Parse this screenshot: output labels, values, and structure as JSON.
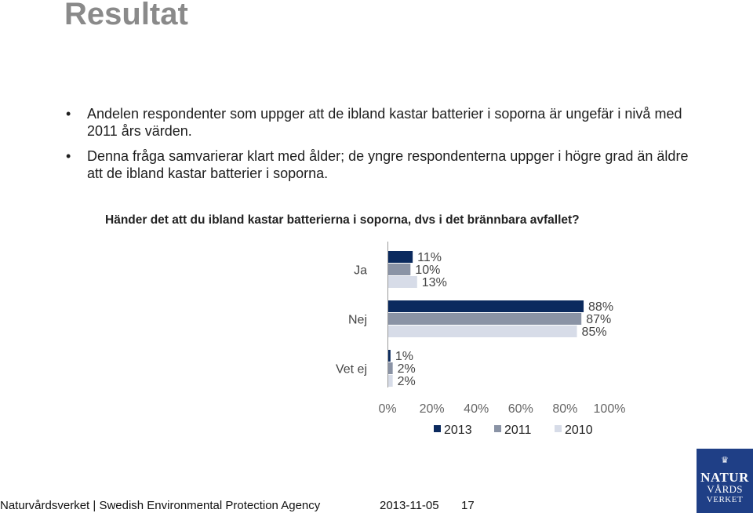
{
  "page": {
    "title": "Resultat",
    "bullets": [
      "Andelen respondenter som uppger att de ibland kastar batterier i soporna är ungefär i nivå med 2011 års värden.",
      "Denna fråga samvarierar klart med ålder; de yngre respondenterna uppger i högre grad än äldre att de ibland kastar batterier i soporna."
    ],
    "bullet_symbol": "•"
  },
  "chart_data": {
    "type": "bar",
    "orientation": "horizontal",
    "title": "Händer det att du ibland kastar batterierna i soporna, dvs i det brännbara avfallet?",
    "categories": [
      "Ja",
      "Nej",
      "Vet ej"
    ],
    "series": [
      {
        "name": "2013",
        "values": [
          11,
          88,
          1
        ],
        "labels": [
          "11%",
          "88%",
          "1%"
        ],
        "color": "#0b2a5e"
      },
      {
        "name": "2011",
        "values": [
          10,
          87,
          2
        ],
        "labels": [
          "10%",
          "87%",
          "2%"
        ],
        "color": "#8a93a5"
      },
      {
        "name": "2010",
        "values": [
          13,
          85,
          2
        ],
        "labels": [
          "13%",
          "85%",
          "2%"
        ],
        "color": "#d7dce8"
      }
    ],
    "xlim": [
      0,
      100
    ],
    "x_ticks": [
      "0%",
      "20%",
      "40%",
      "60%",
      "80%",
      "100%"
    ],
    "legend": "bottom",
    "grid": false
  },
  "footer": {
    "org": "Naturvårdsverket | Swedish Environmental Protection Agency",
    "date": "2013-11-05",
    "page": "17"
  },
  "logo": {
    "line1": "NATUR",
    "line2": "VÅRDS",
    "line3": "VERKET",
    "color": "#1f3f86"
  }
}
